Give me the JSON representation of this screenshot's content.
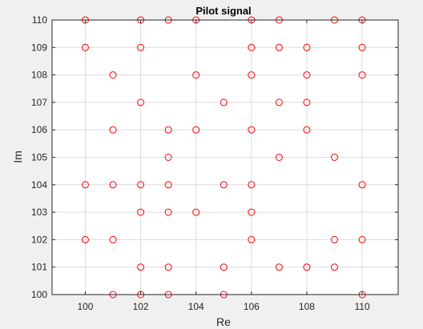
{
  "chart_data": {
    "type": "scatter",
    "title": "Pilot signal",
    "xlabel": "Re",
    "ylabel": "Im",
    "xlim": [
      98.8,
      111.3
    ],
    "ylim": [
      100,
      110
    ],
    "xticks": [
      100,
      102,
      104,
      106,
      108,
      110
    ],
    "yticks": [
      100,
      101,
      102,
      103,
      104,
      105,
      106,
      107,
      108,
      109,
      110
    ],
    "grid": true,
    "marker": "circle-open",
    "marker_color": "#ff0000",
    "points": [
      [
        100,
        110
      ],
      [
        102,
        110
      ],
      [
        103,
        110
      ],
      [
        104,
        110
      ],
      [
        106,
        110
      ],
      [
        107,
        110
      ],
      [
        109,
        110
      ],
      [
        110,
        110
      ],
      [
        100,
        109
      ],
      [
        102,
        109
      ],
      [
        106,
        109
      ],
      [
        107,
        109
      ],
      [
        108,
        109
      ],
      [
        110,
        109
      ],
      [
        101,
        108
      ],
      [
        104,
        108
      ],
      [
        106,
        108
      ],
      [
        108,
        108
      ],
      [
        110,
        108
      ],
      [
        102,
        107
      ],
      [
        105,
        107
      ],
      [
        107,
        107
      ],
      [
        108,
        107
      ],
      [
        101,
        106
      ],
      [
        103,
        106
      ],
      [
        104,
        106
      ],
      [
        106,
        106
      ],
      [
        108,
        106
      ],
      [
        103,
        105
      ],
      [
        107,
        105
      ],
      [
        109,
        105
      ],
      [
        100,
        104
      ],
      [
        101,
        104
      ],
      [
        102,
        104
      ],
      [
        103,
        104
      ],
      [
        105,
        104
      ],
      [
        106,
        104
      ],
      [
        110,
        104
      ],
      [
        102,
        103
      ],
      [
        103,
        103
      ],
      [
        104,
        103
      ],
      [
        106,
        103
      ],
      [
        100,
        102
      ],
      [
        101,
        102
      ],
      [
        106,
        102
      ],
      [
        109,
        102
      ],
      [
        110,
        102
      ],
      [
        102,
        101
      ],
      [
        103,
        101
      ],
      [
        105,
        101
      ],
      [
        107,
        101
      ],
      [
        108,
        101
      ],
      [
        109,
        101
      ],
      [
        101,
        100
      ],
      [
        102,
        100
      ],
      [
        103,
        100
      ],
      [
        105,
        100
      ],
      [
        110,
        100
      ]
    ]
  },
  "colors": {
    "figure_bg": "#f0f0f0",
    "axes_bg": "#ffffff",
    "grid": "#dcdcdc",
    "axis": "#262626",
    "marker": "#ff0000"
  }
}
